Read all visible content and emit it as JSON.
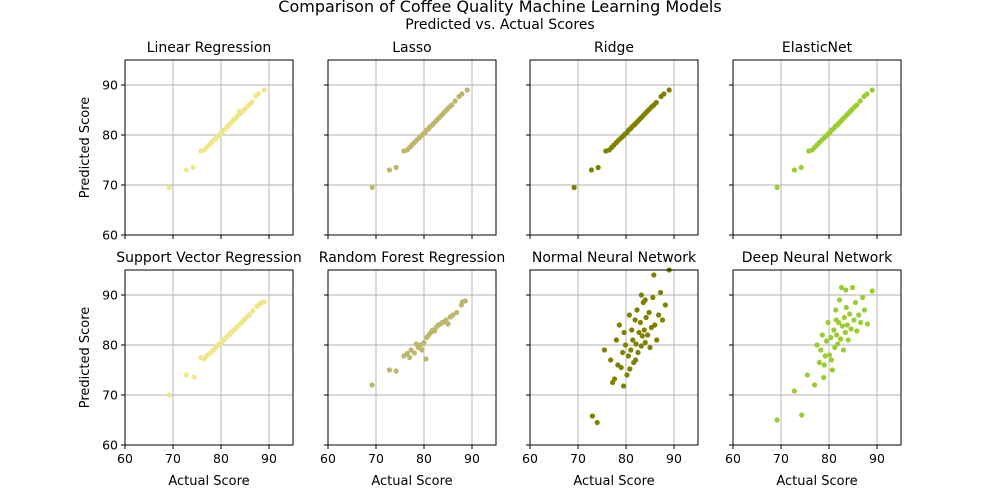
{
  "figure": {
    "title": "Comparison of Coffee Quality Machine Learning Models",
    "subtitle": "Predicted vs. Actual Scores",
    "grid": true
  },
  "chart_data": [
    {
      "type": "scatter",
      "title": "Linear Regression",
      "xlabel": "",
      "ylabel": "Predicted Score",
      "xlim": [
        60,
        95
      ],
      "ylim": [
        60,
        95
      ],
      "xticks": [
        60,
        70,
        80,
        90
      ],
      "yticks": [
        60,
        70,
        80,
        90
      ],
      "color": "#F0E68C",
      "points": [
        [
          69.2,
          69.5
        ],
        [
          72.8,
          73
        ],
        [
          74.2,
          73.5
        ],
        [
          75.8,
          76.8
        ],
        [
          76.5,
          77
        ],
        [
          77,
          77.5
        ],
        [
          77.5,
          78
        ],
        [
          78,
          78.5
        ],
        [
          78.3,
          78.8
        ],
        [
          78.8,
          79.2
        ],
        [
          79.2,
          79.6
        ],
        [
          79.6,
          80
        ],
        [
          80,
          80.4
        ],
        [
          80.3,
          80.6
        ],
        [
          80.6,
          81
        ],
        [
          81,
          81.3
        ],
        [
          81.3,
          81.6
        ],
        [
          81.6,
          82
        ],
        [
          82,
          82.3
        ],
        [
          82.3,
          82.6
        ],
        [
          82.6,
          83
        ],
        [
          83,
          83.3
        ],
        [
          83.3,
          83.6
        ],
        [
          83.6,
          84
        ],
        [
          83.8,
          84.8
        ],
        [
          84,
          84.3
        ],
        [
          84.4,
          84.6
        ],
        [
          84.8,
          85
        ],
        [
          85.2,
          85.4
        ],
        [
          85.6,
          85.8
        ],
        [
          86,
          86.2
        ],
        [
          86.5,
          86.6
        ],
        [
          87.2,
          87.8
        ],
        [
          87.8,
          88.3
        ],
        [
          89,
          89
        ]
      ]
    },
    {
      "type": "scatter",
      "title": "Lasso",
      "xlabel": "",
      "ylabel": "",
      "xlim": [
        60,
        95
      ],
      "ylim": [
        60,
        95
      ],
      "xticks": [
        60,
        70,
        80,
        90
      ],
      "yticks": [
        60,
        70,
        80,
        90
      ],
      "color": "#BDB76B",
      "points": [
        [
          69.2,
          69.5
        ],
        [
          72.8,
          73
        ],
        [
          74.2,
          73.5
        ],
        [
          75.8,
          76.8
        ],
        [
          76.5,
          77
        ],
        [
          77,
          77.5
        ],
        [
          77.5,
          78
        ],
        [
          78,
          78.5
        ],
        [
          78.5,
          79
        ],
        [
          79,
          79.4
        ],
        [
          79.4,
          79.8
        ],
        [
          79.8,
          80.2
        ],
        [
          80.2,
          80.5
        ],
        [
          80.6,
          81
        ],
        [
          81,
          81.3
        ],
        [
          81.3,
          81.7
        ],
        [
          81.7,
          82
        ],
        [
          82,
          82.3
        ],
        [
          82.4,
          82.7
        ],
        [
          82.8,
          83.1
        ],
        [
          83.2,
          83.5
        ],
        [
          83.6,
          83.9
        ],
        [
          84,
          84.3
        ],
        [
          84.4,
          84.7
        ],
        [
          84.8,
          85.1
        ],
        [
          85.3,
          85.6
        ],
        [
          85.8,
          86
        ],
        [
          86.5,
          86.8
        ],
        [
          87.3,
          87.7
        ],
        [
          87.9,
          88.2
        ],
        [
          89,
          89
        ]
      ]
    },
    {
      "type": "scatter",
      "title": "Ridge",
      "xlabel": "",
      "ylabel": "",
      "xlim": [
        60,
        95
      ],
      "ylim": [
        60,
        95
      ],
      "xticks": [
        60,
        70,
        80,
        90
      ],
      "yticks": [
        60,
        70,
        80,
        90
      ],
      "color": "#808000",
      "points": [
        [
          69.2,
          69.5
        ],
        [
          72.8,
          73
        ],
        [
          74.2,
          73.5
        ],
        [
          75.8,
          76.8
        ],
        [
          76.5,
          77
        ],
        [
          77,
          77.5
        ],
        [
          77.5,
          78
        ],
        [
          78,
          78.5
        ],
        [
          78.5,
          79
        ],
        [
          79,
          79.4
        ],
        [
          79.4,
          79.8
        ],
        [
          79.8,
          80.2
        ],
        [
          80.2,
          80.5
        ],
        [
          80.6,
          81
        ],
        [
          81,
          81.3
        ],
        [
          81.3,
          81.7
        ],
        [
          81.7,
          82
        ],
        [
          82,
          82.3
        ],
        [
          82.4,
          82.7
        ],
        [
          82.8,
          83.1
        ],
        [
          83.2,
          83.5
        ],
        [
          83.6,
          83.9
        ],
        [
          84,
          84.3
        ],
        [
          84.4,
          84.7
        ],
        [
          84.8,
          85.1
        ],
        [
          85.3,
          85.6
        ],
        [
          85.8,
          86
        ],
        [
          86.3,
          86.5
        ],
        [
          87.3,
          87.7
        ],
        [
          87.9,
          88.2
        ],
        [
          89,
          89
        ]
      ]
    },
    {
      "type": "scatter",
      "title": "ElasticNet",
      "xlabel": "",
      "ylabel": "",
      "xlim": [
        60,
        95
      ],
      "ylim": [
        60,
        95
      ],
      "xticks": [
        60,
        70,
        80,
        90
      ],
      "yticks": [
        60,
        70,
        80,
        90
      ],
      "color": "#9ACD32",
      "points": [
        [
          69.2,
          69.5
        ],
        [
          72.8,
          73
        ],
        [
          74.2,
          73.5
        ],
        [
          75.8,
          76.8
        ],
        [
          76.5,
          77
        ],
        [
          77,
          77.5
        ],
        [
          77.5,
          78
        ],
        [
          78,
          78.5
        ],
        [
          78.5,
          79
        ],
        [
          79,
          79.4
        ],
        [
          79.4,
          79.8
        ],
        [
          79.8,
          80.2
        ],
        [
          80.2,
          80.5
        ],
        [
          80.6,
          81
        ],
        [
          81,
          81.3
        ],
        [
          81.3,
          81.7
        ],
        [
          81.7,
          82
        ],
        [
          82,
          82.3
        ],
        [
          82.4,
          82.7
        ],
        [
          82.8,
          83.1
        ],
        [
          83.2,
          83.5
        ],
        [
          83.6,
          83.9
        ],
        [
          84,
          84.3
        ],
        [
          84.4,
          84.7
        ],
        [
          84.8,
          85.1
        ],
        [
          85.3,
          85.6
        ],
        [
          85.8,
          86
        ],
        [
          86.5,
          86.8
        ],
        [
          87.3,
          87.7
        ],
        [
          87.9,
          88.2
        ],
        [
          89,
          89
        ]
      ]
    },
    {
      "type": "scatter",
      "title": "Support Vector Regression",
      "xlabel": "Actual Score",
      "ylabel": "Predicted Score",
      "xlim": [
        60,
        95
      ],
      "ylim": [
        60,
        95
      ],
      "xticks": [
        60,
        70,
        80,
        90
      ],
      "yticks": [
        60,
        70,
        80,
        90
      ],
      "color": "#F0E68C",
      "points": [
        [
          69.2,
          70
        ],
        [
          72.8,
          74
        ],
        [
          74.4,
          73.6
        ],
        [
          75.8,
          77.5
        ],
        [
          76.5,
          77.2
        ],
        [
          77,
          77.8
        ],
        [
          77.5,
          78.2
        ],
        [
          78,
          78.6
        ],
        [
          78.4,
          79
        ],
        [
          78.8,
          79.4
        ],
        [
          79.2,
          79.8
        ],
        [
          79.6,
          80.1
        ],
        [
          80,
          80.4
        ],
        [
          80.3,
          80.8
        ],
        [
          80.7,
          81.1
        ],
        [
          81,
          81.5
        ],
        [
          81.4,
          81.8
        ],
        [
          81.8,
          82.1
        ],
        [
          82.1,
          82.5
        ],
        [
          82.5,
          82.8
        ],
        [
          82.9,
          83.2
        ],
        [
          83.3,
          83.5
        ],
        [
          83.7,
          83.9
        ],
        [
          84.1,
          84.3
        ],
        [
          84.5,
          84.7
        ],
        [
          84.9,
          85.1
        ],
        [
          85.4,
          85.6
        ],
        [
          85.9,
          86
        ],
        [
          86.6,
          86.8
        ],
        [
          87.4,
          87.7
        ],
        [
          88,
          88.2
        ],
        [
          88.6,
          88.5
        ],
        [
          89,
          88.6
        ]
      ]
    },
    {
      "type": "scatter",
      "title": "Random Forest Regression",
      "xlabel": "Actual Score",
      "ylabel": "",
      "xlim": [
        60,
        95
      ],
      "ylim": [
        60,
        95
      ],
      "xticks": [
        60,
        70,
        80,
        90
      ],
      "yticks": [
        60,
        70,
        80,
        90
      ],
      "color": "#BDB76B",
      "points": [
        [
          69.2,
          72
        ],
        [
          72.8,
          75
        ],
        [
          74.2,
          74.8
        ],
        [
          75.8,
          77.8
        ],
        [
          76.5,
          78.3
        ],
        [
          77,
          77.5
        ],
        [
          77.3,
          79
        ],
        [
          78,
          78.4
        ],
        [
          78.4,
          80.2
        ],
        [
          78.8,
          79.5
        ],
        [
          79.3,
          80
        ],
        [
          79.6,
          79
        ],
        [
          80,
          80.5
        ],
        [
          80.4,
          77.2
        ],
        [
          80.6,
          81.5
        ],
        [
          81,
          82
        ],
        [
          81.4,
          82.5
        ],
        [
          81.8,
          83
        ],
        [
          82.2,
          82.8
        ],
        [
          82.6,
          83.6
        ],
        [
          83,
          84
        ],
        [
          83.4,
          84.2
        ],
        [
          83.8,
          84.5
        ],
        [
          84.2,
          84.6
        ],
        [
          84.6,
          85
        ],
        [
          85,
          84.2
        ],
        [
          85.5,
          85.6
        ],
        [
          86,
          86
        ],
        [
          86.8,
          86.5
        ],
        [
          87.8,
          88
        ],
        [
          88,
          88.6
        ],
        [
          88.6,
          88.8
        ]
      ]
    },
    {
      "type": "scatter",
      "title": "Normal Neural Network",
      "xlabel": "Actual Score",
      "ylabel": "",
      "xlim": [
        60,
        95
      ],
      "ylim": [
        60,
        95
      ],
      "xticks": [
        60,
        70,
        80,
        90
      ],
      "yticks": [
        60,
        70,
        80,
        90
      ],
      "color": "#808000",
      "points": [
        [
          73,
          65.8
        ],
        [
          74,
          64.5
        ],
        [
          75.5,
          79
        ],
        [
          76.8,
          77
        ],
        [
          77.2,
          72.5
        ],
        [
          77.6,
          73.2
        ],
        [
          78,
          81
        ],
        [
          78.3,
          76
        ],
        [
          78.6,
          84
        ],
        [
          79,
          75.5
        ],
        [
          79.3,
          78.5
        ],
        [
          79.6,
          82.5
        ],
        [
          79.9,
          80
        ],
        [
          80.2,
          74
        ],
        [
          80.5,
          77.8
        ],
        [
          80.7,
          86
        ],
        [
          81,
          79
        ],
        [
          81.2,
          83
        ],
        [
          81.4,
          81
        ],
        [
          81.6,
          76.5
        ],
        [
          81.9,
          85
        ],
        [
          82.1,
          80.2
        ],
        [
          82.3,
          87
        ],
        [
          82.5,
          78.5
        ],
        [
          82.7,
          82.5
        ],
        [
          83,
          84.5
        ],
        [
          83.2,
          79.8
        ],
        [
          83.4,
          81.8
        ],
        [
          83.6,
          88.5
        ],
        [
          83.8,
          83
        ],
        [
          84,
          80.5
        ],
        [
          84.2,
          85.5
        ],
        [
          84.5,
          82
        ],
        [
          84.8,
          86.5
        ],
        [
          85,
          79.5
        ],
        [
          85.3,
          83.5
        ],
        [
          85.6,
          89.5
        ],
        [
          86,
          84
        ],
        [
          86.4,
          81
        ],
        [
          86.8,
          86
        ],
        [
          87.2,
          90.5
        ],
        [
          87.6,
          85
        ],
        [
          88.2,
          88
        ],
        [
          89,
          95
        ],
        [
          85.8,
          94
        ],
        [
          84,
          89
        ],
        [
          82,
          77
        ],
        [
          79.5,
          71.8
        ],
        [
          80.8,
          75.2
        ],
        [
          83.2,
          90
        ]
      ]
    },
    {
      "type": "scatter",
      "title": "Deep Neural Network",
      "xlabel": "Actual Score",
      "ylabel": "",
      "xlim": [
        60,
        95
      ],
      "ylim": [
        60,
        95
      ],
      "xticks": [
        60,
        70,
        80,
        90
      ],
      "yticks": [
        60,
        70,
        80,
        90
      ],
      "color": "#9ACD32",
      "points": [
        [
          69.2,
          65
        ],
        [
          72.8,
          70.8
        ],
        [
          74.3,
          66
        ],
        [
          75.5,
          74
        ],
        [
          77,
          72
        ],
        [
          77.5,
          80
        ],
        [
          78,
          76.5
        ],
        [
          78.3,
          79
        ],
        [
          78.6,
          82
        ],
        [
          78.9,
          73.5
        ],
        [
          79.2,
          77.8
        ],
        [
          79.5,
          80.8
        ],
        [
          79.8,
          84.5
        ],
        [
          80.1,
          78
        ],
        [
          80.4,
          81.5
        ],
        [
          80.7,
          75
        ],
        [
          81,
          83
        ],
        [
          81.2,
          79.5
        ],
        [
          81.4,
          87
        ],
        [
          81.6,
          82
        ],
        [
          81.8,
          80.2
        ],
        [
          82,
          84.5
        ],
        [
          82.2,
          89
        ],
        [
          82.4,
          81.2
        ],
        [
          82.6,
          91.5
        ],
        [
          82.8,
          83.8
        ],
        [
          83,
          79
        ],
        [
          83.2,
          85.5
        ],
        [
          83.4,
          82.5
        ],
        [
          83.6,
          87.5
        ],
        [
          83.8,
          84
        ],
        [
          84,
          81
        ],
        [
          84.3,
          86.2
        ],
        [
          84.6,
          83.2
        ],
        [
          84.9,
          91.5
        ],
        [
          85.2,
          85
        ],
        [
          85.5,
          88.5
        ],
        [
          85.8,
          82.8
        ],
        [
          86.2,
          86
        ],
        [
          86.6,
          84.5
        ],
        [
          87,
          89.5
        ],
        [
          87.4,
          87
        ],
        [
          88,
          84.2
        ],
        [
          89,
          90.8
        ],
        [
          80.5,
          77
        ],
        [
          79,
          76
        ],
        [
          81.5,
          85
        ],
        [
          83.5,
          91
        ]
      ]
    }
  ]
}
